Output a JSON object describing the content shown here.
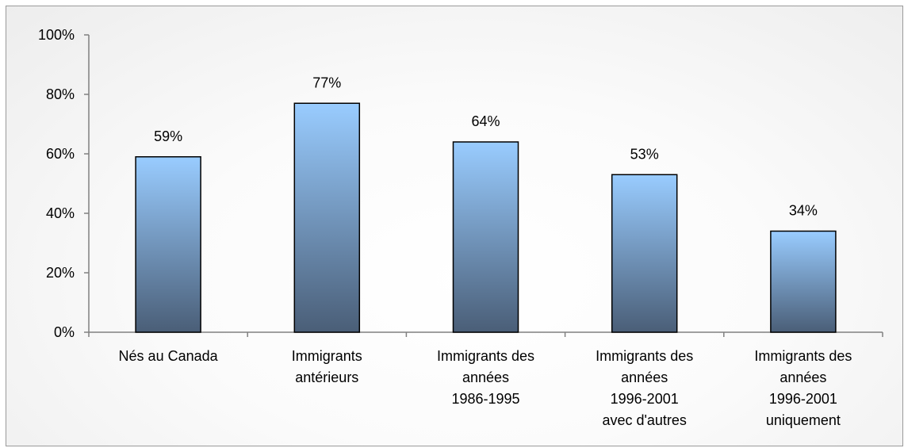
{
  "chart_data": {
    "type": "bar",
    "categories": [
      [
        "Nés au Canada"
      ],
      [
        "Immigrants",
        "antérieurs"
      ],
      [
        "Immigrants des",
        "années",
        "1986-1995"
      ],
      [
        "Immigrants des",
        "années",
        "1996-2001",
        "avec d'autres"
      ],
      [
        "Immigrants des",
        "années",
        "1996-2001",
        "uniquement"
      ]
    ],
    "values": [
      59,
      77,
      64,
      53,
      34
    ],
    "data_labels": [
      "59%",
      "77%",
      "64%",
      "53%",
      "34%"
    ],
    "ylim": [
      0,
      100
    ],
    "yticks": [
      0,
      20,
      40,
      60,
      80,
      100
    ],
    "ytick_labels": [
      "0%",
      "20%",
      "40%",
      "60%",
      "80%",
      "100%"
    ],
    "title": "",
    "xlabel": "",
    "ylabel": "",
    "grid": false,
    "legend": "none",
    "colors": {
      "bar_top": "#99ccff",
      "bar_bottom": "#4a5e77",
      "bar_outline": "#000000",
      "axis": "#808080"
    }
  }
}
